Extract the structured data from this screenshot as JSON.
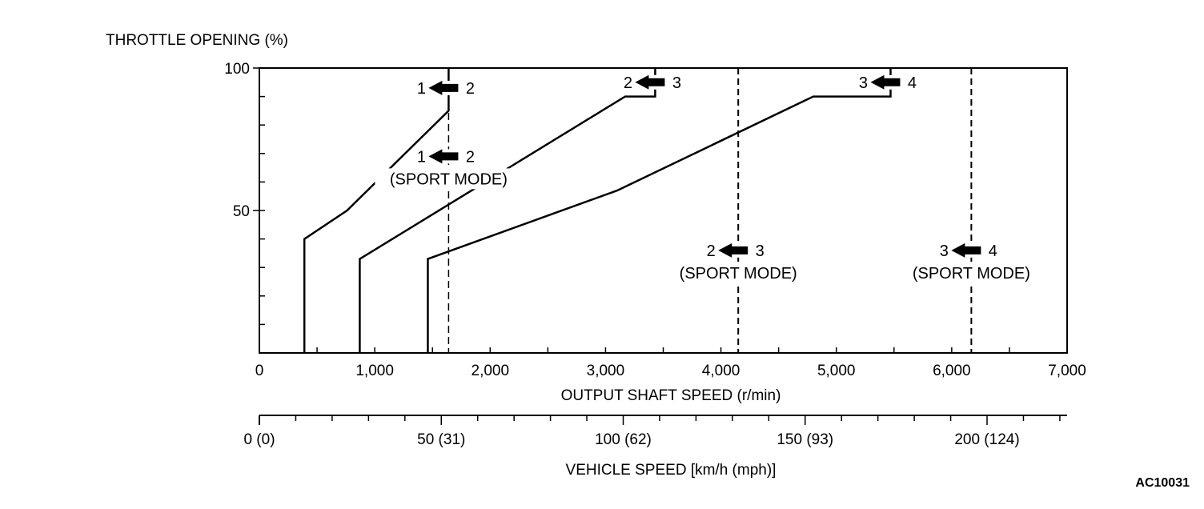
{
  "chart_data": {
    "type": "line",
    "ylabel": "THROTTLE OPENING (%)",
    "xlabel": "OUTPUT SHAFT SPEED (r/min)",
    "x2label": "VEHICLE SPEED [km/h (mph)]",
    "xlim": [
      0,
      7000
    ],
    "ylim": [
      0,
      100
    ],
    "x_ticks": [
      "0",
      "1,000",
      "2,000",
      "3,000",
      "4,000",
      "5,000",
      "6,000",
      "7,000"
    ],
    "y_ticks": [
      "50",
      "100"
    ],
    "x2_ticks": [
      "0 (0)",
      "50 (31)",
      "100 (62)",
      "150 (93)",
      "200 (124)"
    ],
    "x2_tick_values": [
      0,
      50,
      100,
      150,
      200
    ],
    "x2_max": 222,
    "grid": false,
    "series": [
      {
        "name": "1 ← 2",
        "x": [
          390,
          390,
          760,
          1640,
          1640
        ],
        "y": [
          0,
          40,
          50,
          85,
          100
        ]
      },
      {
        "name": "2 ← 3",
        "x": [
          870,
          870,
          3170,
          3430,
          3430
        ],
        "y": [
          0,
          33,
          90,
          90,
          100
        ]
      },
      {
        "name": "3 ← 4",
        "x": [
          1460,
          1460,
          3100,
          4800,
          5470,
          5470
        ],
        "y": [
          0,
          33,
          57,
          90,
          90,
          100
        ]
      }
    ],
    "sport_mode_lines": [
      {
        "name": "1 ← 2 (SPORT MODE)",
        "x": 1640
      },
      {
        "name": "2 ← 3 (SPORT MODE)",
        "x": 4150
      },
      {
        "name": "3 ← 4 (SPORT MODE)",
        "x": 6170
      }
    ],
    "annotations": [
      {
        "from": "1",
        "to": "2",
        "mode": "",
        "x": 1640,
        "y": 93
      },
      {
        "from": "2",
        "to": "3",
        "mode": "",
        "x": 3430,
        "y": 95
      },
      {
        "from": "3",
        "to": "4",
        "mode": "",
        "x": 5470,
        "y": 95
      },
      {
        "from": "1",
        "to": "2",
        "mode": "(SPORT MODE)",
        "x": 1640,
        "y": 69
      },
      {
        "from": "2",
        "to": "3",
        "mode": "(SPORT MODE)",
        "x": 4150,
        "y": 36
      },
      {
        "from": "3",
        "to": "4",
        "mode": "(SPORT MODE)",
        "x": 6170,
        "y": 36
      }
    ]
  },
  "figure_code": "AC10031"
}
